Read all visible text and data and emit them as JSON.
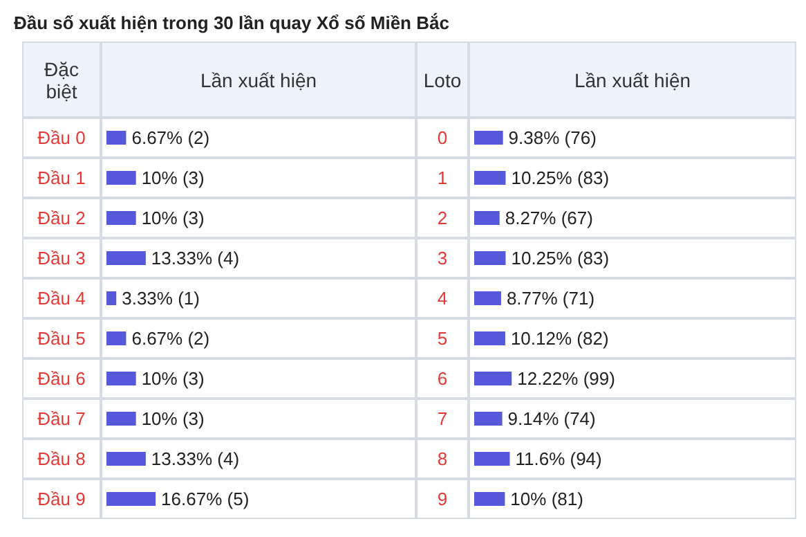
{
  "chart_data": [
    {
      "type": "bar",
      "orientation": "horizontal",
      "title": "Đầu số xuất hiện trong 30 lần quay Xổ số Miền Bắc",
      "ylabel": "Đặc biệt",
      "xlabel": "Lần xuất hiện",
      "color": "#5558d9",
      "categories": [
        "Đầu 0",
        "Đầu 1",
        "Đầu 2",
        "Đầu 3",
        "Đầu 4",
        "Đầu 5",
        "Đầu 6",
        "Đầu 7",
        "Đầu 8",
        "Đầu 9"
      ],
      "values": [
        6.67,
        10,
        10,
        13.33,
        3.33,
        6.67,
        10,
        10,
        13.33,
        16.67
      ],
      "value_labels": [
        "6.67% (2)",
        "10% (3)",
        "10% (3)",
        "13.33% (4)",
        "3.33% (1)",
        "6.67% (2)",
        "10% (3)",
        "10% (3)",
        "13.33% (4)",
        "16.67% (5)"
      ]
    },
    {
      "type": "bar",
      "orientation": "horizontal",
      "ylabel": "Loto",
      "xlabel": "Lần xuất hiện",
      "color": "#5558d9",
      "categories": [
        "0",
        "1",
        "2",
        "3",
        "4",
        "5",
        "6",
        "7",
        "8",
        "9"
      ],
      "values": [
        9.38,
        10.25,
        8.27,
        10.25,
        8.77,
        10.12,
        12.22,
        9.14,
        11.6,
        10
      ],
      "value_labels": [
        "9.38% (76)",
        "10.25% (83)",
        "8.27% (67)",
        "10.25% (83)",
        "8.77% (71)",
        "10.12% (82)",
        "12.22% (99)",
        "9.14% (74)",
        "11.6% (94)",
        "10% (81)"
      ]
    }
  ]
}
